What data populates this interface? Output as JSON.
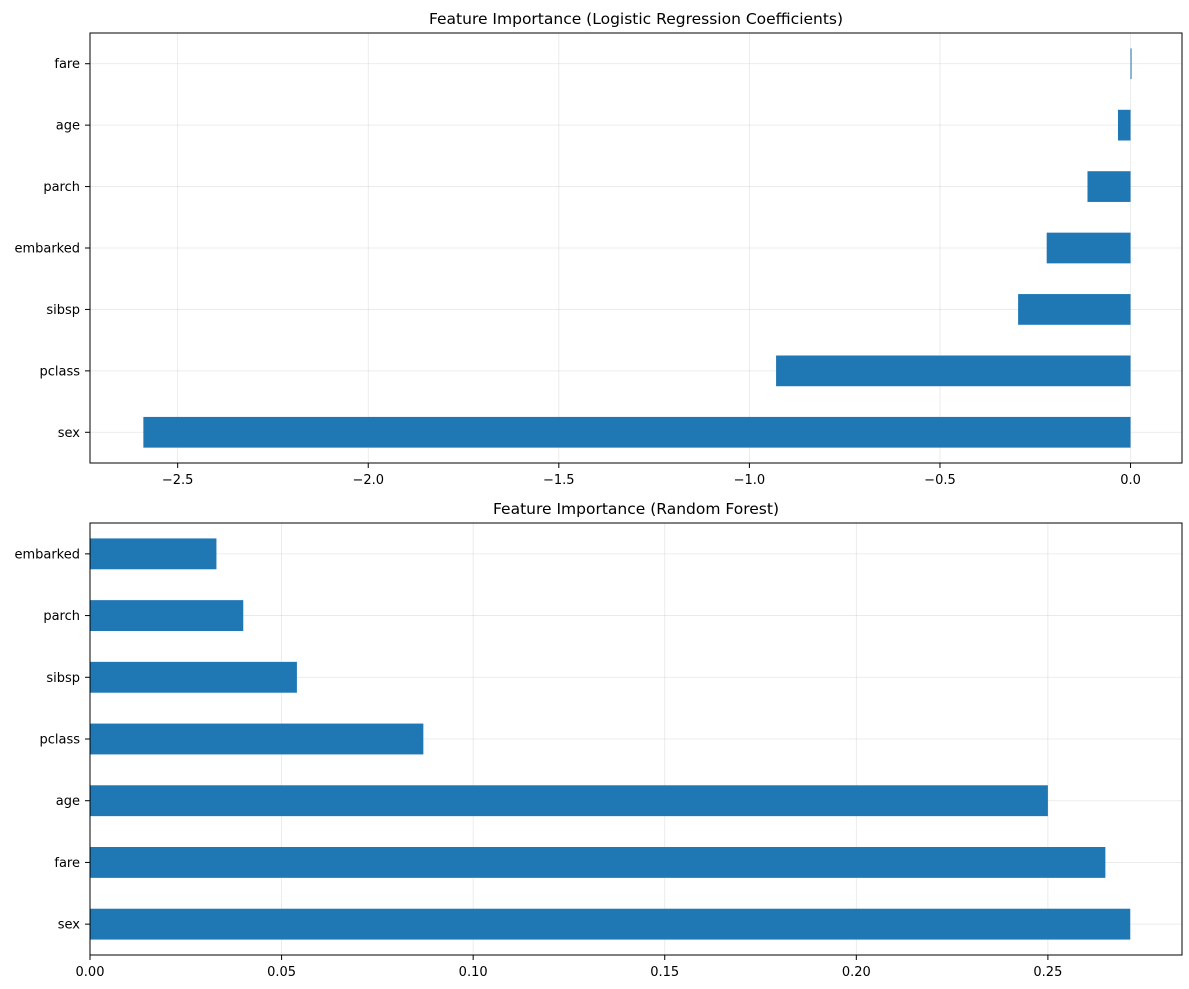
{
  "chart_data": [
    {
      "type": "bar",
      "orientation": "horizontal",
      "title": "Feature Importance (Logistic Regression Coefficients)",
      "xlabel": "",
      "ylabel": "",
      "categories": [
        "sex",
        "pclass",
        "sibsp",
        "embarked",
        "parch",
        "age",
        "fare"
      ],
      "values": [
        -2.59,
        -0.93,
        -0.295,
        -0.22,
        -0.113,
        -0.033,
        0.002
      ],
      "xlim": [
        -2.73,
        0.135
      ],
      "xticks": [
        -2.5,
        -2.0,
        -1.5,
        -1.0,
        -0.5,
        0.0
      ],
      "xtick_labels": [
        "−2.5",
        "−2.0",
        "−1.5",
        "−1.0",
        "−0.5",
        "0.0"
      ],
      "grid": true,
      "bar_color": "#1f77b4"
    },
    {
      "type": "bar",
      "orientation": "horizontal",
      "title": "Feature Importance (Random Forest)",
      "xlabel": "",
      "ylabel": "",
      "categories": [
        "sex",
        "fare",
        "age",
        "pclass",
        "sibsp",
        "parch",
        "embarked"
      ],
      "values": [
        0.2715,
        0.265,
        0.25,
        0.087,
        0.054,
        0.04,
        0.033
      ],
      "xlim": [
        0.0,
        0.285
      ],
      "xticks": [
        0.0,
        0.05,
        0.1,
        0.15,
        0.2,
        0.25
      ],
      "xtick_labels": [
        "0.00",
        "0.05",
        "0.10",
        "0.15",
        "0.20",
        "0.25"
      ],
      "grid": true,
      "bar_color": "#1f77b4"
    }
  ]
}
